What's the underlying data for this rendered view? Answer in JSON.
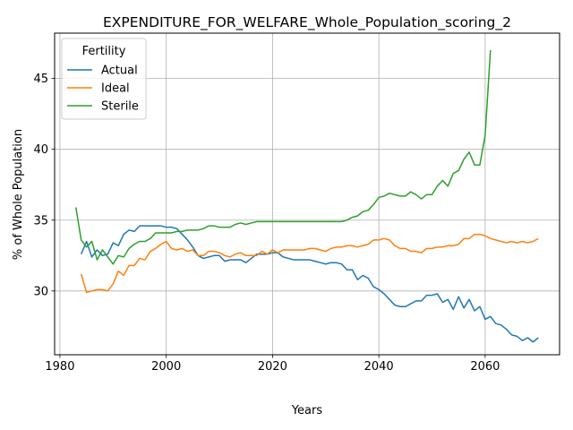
{
  "chart_data": {
    "type": "line",
    "title": "EXPENDITURE_FOR_WELFARE_Whole_Population_scoring_2",
    "xlabel": "Years",
    "ylabel": "% of Whole Population",
    "xlim": [
      1979,
      2074
    ],
    "ylim": [
      25.5,
      48.2
    ],
    "xticks": [
      1980,
      2000,
      2020,
      2040,
      2060
    ],
    "yticks": [
      30,
      35,
      40,
      45
    ],
    "grid": true,
    "legend": {
      "title": "Fertility",
      "position": "upper left"
    },
    "series": [
      {
        "name": "Actual",
        "color": "#1f77b4",
        "x": [
          1984,
          1985,
          1986,
          1987,
          1988,
          1989,
          1990,
          1991,
          1992,
          1993,
          1994,
          1995,
          1996,
          1997,
          1998,
          1999,
          2000,
          2001,
          2002,
          2003,
          2004,
          2005,
          2006,
          2007,
          2008,
          2009,
          2010,
          2011,
          2012,
          2013,
          2014,
          2015,
          2016,
          2017,
          2018,
          2019,
          2020,
          2021,
          2022,
          2023,
          2024,
          2025,
          2026,
          2027,
          2028,
          2029,
          2030,
          2031,
          2032,
          2033,
          2034,
          2035,
          2036,
          2037,
          2038,
          2039,
          2040,
          2041,
          2042,
          2043,
          2044,
          2045,
          2046,
          2047,
          2048,
          2049,
          2050,
          2051,
          2052,
          2053,
          2054,
          2055,
          2056,
          2057,
          2058,
          2059,
          2060,
          2061,
          2062,
          2063,
          2064,
          2065,
          2066,
          2067,
          2068,
          2069,
          2070
        ],
        "values": [
          32.6,
          33.5,
          32.4,
          32.9,
          32.5,
          32.6,
          33.4,
          33.2,
          34.0,
          34.3,
          34.2,
          34.6,
          34.6,
          34.6,
          34.6,
          34.6,
          34.5,
          34.5,
          34.4,
          34.0,
          33.6,
          33.1,
          32.5,
          32.3,
          32.4,
          32.5,
          32.5,
          32.1,
          32.2,
          32.2,
          32.2,
          32.0,
          32.3,
          32.6,
          32.6,
          32.6,
          32.7,
          32.7,
          32.4,
          32.3,
          32.2,
          32.2,
          32.2,
          32.2,
          32.1,
          32.0,
          31.9,
          32.0,
          32.0,
          31.9,
          31.5,
          31.5,
          30.8,
          31.1,
          30.9,
          30.3,
          30.1,
          29.8,
          29.4,
          29.0,
          28.9,
          28.9,
          29.1,
          29.3,
          29.3,
          29.7,
          29.7,
          29.8,
          29.2,
          29.4,
          28.7,
          29.6,
          28.8,
          29.4,
          28.6,
          28.9,
          28.0,
          28.2,
          27.7,
          27.6,
          27.3,
          26.9,
          26.8,
          26.5,
          26.7,
          26.4,
          26.7
        ]
      },
      {
        "name": "Ideal",
        "color": "#ff7f0e",
        "x": [
          1984,
          1985,
          1986,
          1987,
          1988,
          1989,
          1990,
          1991,
          1992,
          1993,
          1994,
          1995,
          1996,
          1997,
          1998,
          1999,
          2000,
          2001,
          2002,
          2003,
          2004,
          2005,
          2006,
          2007,
          2008,
          2009,
          2010,
          2011,
          2012,
          2013,
          2014,
          2015,
          2016,
          2017,
          2018,
          2019,
          2020,
          2021,
          2022,
          2023,
          2024,
          2025,
          2026,
          2027,
          2028,
          2029,
          2030,
          2031,
          2032,
          2033,
          2034,
          2035,
          2036,
          2037,
          2038,
          2039,
          2040,
          2041,
          2042,
          2043,
          2044,
          2045,
          2046,
          2047,
          2048,
          2049,
          2050,
          2051,
          2052,
          2053,
          2054,
          2055,
          2056,
          2057,
          2058,
          2059,
          2060,
          2061,
          2062,
          2063,
          2064,
          2065,
          2066,
          2067,
          2068,
          2069,
          2070
        ],
        "values": [
          31.2,
          29.9,
          30.0,
          30.1,
          30.1,
          30.0,
          30.5,
          31.4,
          31.1,
          31.8,
          31.8,
          32.3,
          32.2,
          32.8,
          33.0,
          33.3,
          33.5,
          33.0,
          32.9,
          33.0,
          32.8,
          32.9,
          32.5,
          32.5,
          32.8,
          32.8,
          32.7,
          32.5,
          32.4,
          32.6,
          32.7,
          32.5,
          32.5,
          32.5,
          32.8,
          32.6,
          32.9,
          32.7,
          32.9,
          32.9,
          32.9,
          32.9,
          32.9,
          33.0,
          33.0,
          32.9,
          32.8,
          33.0,
          33.1,
          33.1,
          33.2,
          33.2,
          33.1,
          33.2,
          33.3,
          33.6,
          33.6,
          33.7,
          33.6,
          33.2,
          33.0,
          33.0,
          32.8,
          32.8,
          32.7,
          33.0,
          33.0,
          33.1,
          33.1,
          33.2,
          33.2,
          33.3,
          33.7,
          33.7,
          34.0,
          34.0,
          33.9,
          33.7,
          33.6,
          33.5,
          33.4,
          33.5,
          33.4,
          33.5,
          33.4,
          33.5,
          33.7
        ]
      },
      {
        "name": "Sterile",
        "color": "#2ca02c",
        "x": [
          1983,
          1984,
          1985,
          1986,
          1987,
          1988,
          1989,
          1990,
          1991,
          1992,
          1993,
          1994,
          1995,
          1996,
          1997,
          1998,
          1999,
          2000,
          2001,
          2002,
          2003,
          2004,
          2005,
          2006,
          2007,
          2008,
          2009,
          2010,
          2011,
          2012,
          2013,
          2014,
          2015,
          2016,
          2017,
          2018,
          2019,
          2020,
          2021,
          2022,
          2023,
          2024,
          2025,
          2026,
          2027,
          2028,
          2029,
          2030,
          2031,
          2032,
          2033,
          2034,
          2035,
          2036,
          2037,
          2038,
          2039,
          2040,
          2041,
          2042,
          2043,
          2044,
          2045,
          2046,
          2047,
          2048,
          2049,
          2050,
          2051,
          2052,
          2053,
          2054,
          2055,
          2056,
          2057,
          2058,
          2059,
          2060,
          2061
        ],
        "values": [
          35.9,
          33.6,
          33.1,
          33.5,
          32.2,
          32.9,
          32.4,
          31.9,
          32.5,
          32.4,
          33.0,
          33.3,
          33.5,
          33.5,
          33.7,
          34.1,
          34.1,
          34.1,
          34.1,
          34.2,
          34.2,
          34.3,
          34.3,
          34.3,
          34.4,
          34.6,
          34.6,
          34.5,
          34.5,
          34.5,
          34.7,
          34.8,
          34.7,
          34.8,
          34.9,
          34.9,
          34.9,
          34.9,
          34.9,
          34.9,
          34.9,
          34.9,
          34.9,
          34.9,
          34.9,
          34.9,
          34.9,
          34.9,
          34.9,
          34.9,
          34.9,
          35.0,
          35.2,
          35.3,
          35.6,
          35.7,
          36.1,
          36.6,
          36.7,
          36.9,
          36.8,
          36.7,
          36.7,
          37.0,
          36.8,
          36.5,
          36.8,
          36.8,
          37.4,
          37.8,
          37.4,
          38.3,
          38.5,
          39.3,
          39.8,
          38.9,
          38.9,
          41.0,
          47.0
        ]
      }
    ]
  }
}
